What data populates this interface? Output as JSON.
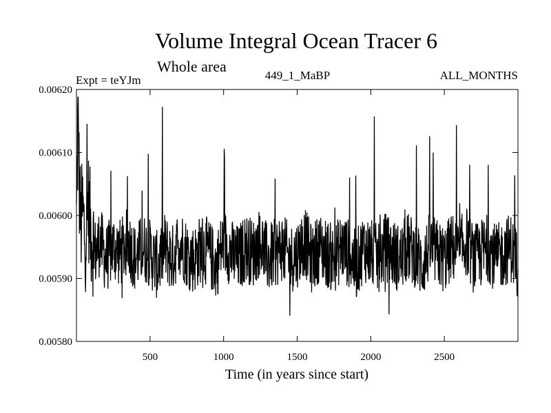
{
  "chart_data": {
    "type": "line",
    "title": "Volume Integral Ocean Tracer 6",
    "subtitle": "Whole area",
    "expt_label": "Expt = teYJm",
    "run_label": "449_1_MaBP",
    "months_label": "ALL_MONTHS",
    "xlabel": "Time (in years since start)",
    "ylabel": "",
    "xlim": [
      0,
      3000
    ],
    "ylim": [
      0.0058,
      0.0062
    ],
    "x_ticks": [
      500,
      1000,
      1500,
      2000,
      2500
    ],
    "y_ticks": [
      0.0058,
      0.0059,
      0.006,
      0.0061,
      0.0062
    ],
    "x_tick_labels": [
      "500",
      "1000",
      "1500",
      "2000",
      "2500"
    ],
    "y_tick_labels": [
      "0.00580",
      "0.00590",
      "0.00600",
      "0.00610",
      "0.00620"
    ],
    "series": [
      {
        "name": "Ocean Tracer 6 (whole area)",
        "x": [
          0,
          10,
          20,
          30,
          40,
          60,
          80,
          100,
          130,
          160,
          200,
          250,
          300,
          350,
          400,
          450,
          500,
          550,
          600,
          650,
          700,
          750,
          800,
          850,
          900,
          950,
          1000,
          1050,
          1100,
          1150,
          1200,
          1250,
          1300,
          1350,
          1400,
          1450,
          1500,
          1550,
          1600,
          1650,
          1700,
          1750,
          1800,
          1850,
          1900,
          1950,
          2000,
          2050,
          2100,
          2150,
          2200,
          2250,
          2300,
          2350,
          2400,
          2450,
          2500,
          2550,
          2600,
          2650,
          2700,
          2750,
          2800,
          2850,
          2900,
          2950,
          3000
        ],
        "y": [
          0.00599,
          0.00617,
          0.00604,
          0.00598,
          0.00601,
          0.00596,
          0.00602,
          0.00597,
          0.00594,
          0.00596,
          0.00593,
          0.00595,
          0.00594,
          0.00596,
          0.00593,
          0.00595,
          0.00594,
          0.00592,
          0.00595,
          0.00593,
          0.00596,
          0.00594,
          0.00593,
          0.00595,
          0.00594,
          0.00592,
          0.00596,
          0.00594,
          0.00593,
          0.00595,
          0.00594,
          0.00596,
          0.00593,
          0.00594,
          0.00595,
          0.00593,
          0.00594,
          0.00596,
          0.00593,
          0.00595,
          0.00594,
          0.00593,
          0.00595,
          0.00594,
          0.00592,
          0.00595,
          0.00594,
          0.00593,
          0.00595,
          0.00594,
          0.00593,
          0.00595,
          0.00594,
          0.00592,
          0.00595,
          0.00594,
          0.00593,
          0.00595,
          0.00594,
          0.00596,
          0.00593,
          0.00594,
          0.00595,
          0.00593,
          0.00594,
          0.00595,
          0.00592
        ]
      }
    ]
  }
}
